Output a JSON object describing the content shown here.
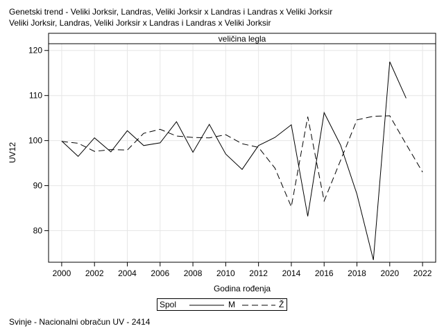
{
  "title": {
    "line1": "Genetski trend - Veliki Jorksir, Landras, Veliki Jorksir x Landras i Landras x Veliki Jorksir",
    "line2": "Veliki Jorksir, Landras, Veliki Jorksir x Landras i Landras x Veliki Jorksir"
  },
  "footnote": "Svinje - Nacionalni obračun UV - 2414",
  "legend": {
    "title": "Spol",
    "items": [
      {
        "label": "M",
        "dash": "solid"
      },
      {
        "label": "Ž",
        "dash": "dashed"
      }
    ]
  },
  "colors": {
    "line": "#000000",
    "grid": "#e6e6e6",
    "frame": "#000000"
  },
  "chart_data": {
    "type": "line",
    "panel_title": "veličina legla",
    "xlabel": "Godina rođenja",
    "ylabel": "UV12",
    "xlim": [
      1999.2,
      2022.8
    ],
    "ylim": [
      73,
      121.5
    ],
    "xticks": [
      2000,
      2002,
      2004,
      2006,
      2008,
      2010,
      2012,
      2014,
      2016,
      2018,
      2020,
      2022
    ],
    "yticks": [
      80,
      90,
      100,
      110,
      120
    ],
    "grid": true,
    "legend_position": "bottom",
    "series": [
      {
        "name": "M",
        "x": [
          2000,
          2001,
          2002,
          2003,
          2004,
          2005,
          2006,
          2007,
          2008,
          2009,
          2010,
          2011,
          2012,
          2013,
          2014,
          2015,
          2016,
          2017,
          2018,
          2019,
          2020,
          2021
        ],
        "values": [
          99.9,
          96.5,
          100.6,
          97.5,
          102.2,
          98.9,
          99.5,
          104.2,
          97.4,
          103.6,
          97.0,
          93.6,
          98.9,
          100.7,
          103.5,
          83.2,
          106.2,
          99.0,
          88.1,
          73.5,
          117.5,
          109.4
        ]
      },
      {
        "name": "Ž",
        "x": [
          2000,
          2001,
          2002,
          2003,
          2004,
          2005,
          2006,
          2007,
          2008,
          2009,
          2010,
          2011,
          2012,
          2013,
          2014,
          2015,
          2016,
          2017,
          2018,
          2019,
          2020,
          2021,
          2022
        ],
        "values": [
          99.8,
          99.4,
          97.6,
          98.0,
          97.9,
          101.6,
          102.5,
          101.0,
          100.7,
          100.6,
          101.3,
          99.3,
          98.5,
          93.9,
          85.3,
          105.3,
          86.6,
          95.6,
          104.6,
          105.4,
          105.5,
          99.2,
          93.0
        ]
      }
    ]
  }
}
